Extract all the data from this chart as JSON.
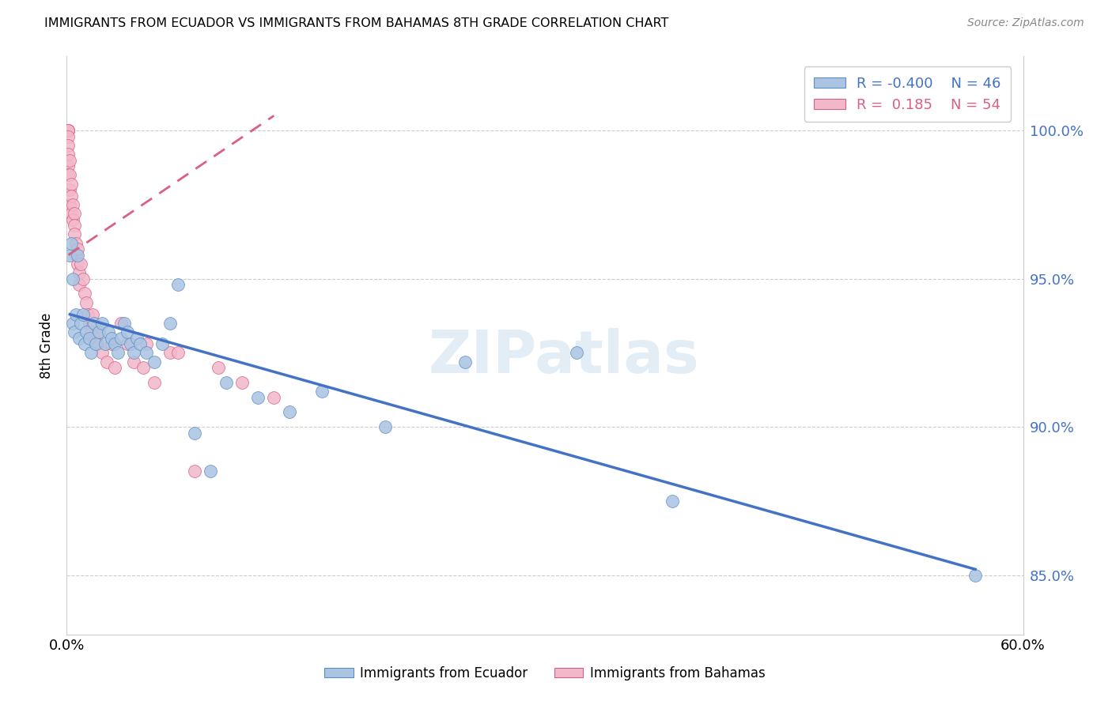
{
  "title": "IMMIGRANTS FROM ECUADOR VS IMMIGRANTS FROM BAHAMAS 8TH GRADE CORRELATION CHART",
  "source": "Source: ZipAtlas.com",
  "ylabel": "8th Grade",
  "y_ticks": [
    85.0,
    90.0,
    95.0,
    100.0
  ],
  "y_tick_labels": [
    "85.0%",
    "90.0%",
    "95.0%",
    "100.0%"
  ],
  "xlim": [
    0.0,
    0.6
  ],
  "ylim": [
    83.0,
    102.5
  ],
  "ecuador_R": -0.4,
  "ecuador_N": 46,
  "bahamas_R": 0.185,
  "bahamas_N": 54,
  "ecuador_color": "#aac4e2",
  "ecuador_edge_color": "#5b8ec4",
  "ecuador_line_color": "#4472c4",
  "bahamas_color": "#f2b8ca",
  "bahamas_edge_color": "#d96080",
  "bahamas_line_color": "#d96080",
  "watermark": "ZIPatlas",
  "legend_ecuador_label": "Immigrants from Ecuador",
  "legend_bahamas_label": "Immigrants from Bahamas",
  "ecuador_x": [
    0.002,
    0.003,
    0.004,
    0.004,
    0.005,
    0.006,
    0.007,
    0.008,
    0.009,
    0.01,
    0.011,
    0.012,
    0.014,
    0.015,
    0.017,
    0.018,
    0.02,
    0.022,
    0.024,
    0.026,
    0.028,
    0.03,
    0.032,
    0.034,
    0.036,
    0.038,
    0.04,
    0.042,
    0.044,
    0.046,
    0.05,
    0.055,
    0.06,
    0.065,
    0.07,
    0.08,
    0.09,
    0.1,
    0.12,
    0.14,
    0.16,
    0.2,
    0.25,
    0.32,
    0.38,
    0.57
  ],
  "ecuador_y": [
    95.8,
    96.2,
    93.5,
    95.0,
    93.2,
    93.8,
    95.8,
    93.0,
    93.5,
    93.8,
    92.8,
    93.2,
    93.0,
    92.5,
    93.5,
    92.8,
    93.2,
    93.5,
    92.8,
    93.2,
    93.0,
    92.8,
    92.5,
    93.0,
    93.5,
    93.2,
    92.8,
    92.5,
    93.0,
    92.8,
    92.5,
    92.2,
    92.8,
    93.5,
    94.8,
    89.8,
    88.5,
    91.5,
    91.0,
    90.5,
    91.2,
    90.0,
    92.2,
    92.5,
    87.5,
    85.0
  ],
  "bahamas_x": [
    0.001,
    0.001,
    0.001,
    0.001,
    0.001,
    0.001,
    0.001,
    0.001,
    0.001,
    0.002,
    0.002,
    0.002,
    0.002,
    0.003,
    0.003,
    0.003,
    0.004,
    0.004,
    0.005,
    0.005,
    0.005,
    0.006,
    0.006,
    0.007,
    0.007,
    0.008,
    0.008,
    0.009,
    0.01,
    0.011,
    0.012,
    0.013,
    0.014,
    0.015,
    0.016,
    0.017,
    0.019,
    0.02,
    0.022,
    0.025,
    0.028,
    0.03,
    0.034,
    0.038,
    0.042,
    0.048,
    0.055,
    0.065,
    0.08,
    0.095,
    0.11,
    0.13,
    0.05,
    0.07
  ],
  "bahamas_y": [
    100.0,
    100.0,
    100.0,
    100.0,
    99.8,
    99.5,
    99.2,
    98.8,
    98.5,
    99.0,
    98.5,
    98.0,
    97.5,
    98.2,
    97.8,
    97.2,
    97.5,
    97.0,
    97.2,
    96.8,
    96.5,
    96.2,
    95.8,
    96.0,
    95.5,
    95.2,
    94.8,
    95.5,
    95.0,
    94.5,
    94.2,
    93.8,
    93.5,
    93.2,
    93.8,
    93.0,
    92.8,
    93.2,
    92.5,
    92.2,
    92.8,
    92.0,
    93.5,
    92.8,
    92.2,
    92.0,
    91.5,
    92.5,
    88.5,
    92.0,
    91.5,
    91.0,
    92.8,
    92.5
  ],
  "ecuador_trendline_x": [
    0.002,
    0.57
  ],
  "ecuador_trendline_y": [
    93.8,
    85.2
  ],
  "bahamas_trendline_x": [
    0.001,
    0.13
  ],
  "bahamas_trendline_y": [
    95.8,
    100.5
  ]
}
